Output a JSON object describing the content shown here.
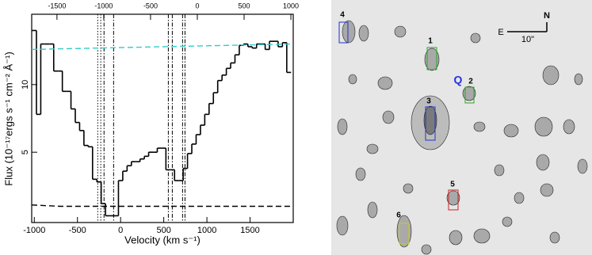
{
  "chart_data": {
    "type": "line",
    "x_label": "Velocity (km s⁻¹)",
    "y_label": "Flux  (10⁻¹⁷ergs s⁻¹ cm⁻² Å⁻¹)",
    "xlim": [
      -1030,
      2000
    ],
    "xticks": [
      -1000,
      -500,
      0,
      500,
      1000,
      1500
    ],
    "x2lim": [
      -1770,
      1025
    ],
    "x2ticks": [
      -1500,
      -1000,
      -500,
      0,
      500,
      1000
    ],
    "ylim": [
      -0.2,
      15.2
    ],
    "yticks": [
      5,
      10
    ],
    "series": [
      {
        "style": "steps",
        "color": "#000000",
        "x": [
          -1000,
          -950,
          -900,
          -850,
          -800,
          -750,
          -700,
          -650,
          -600,
          -550,
          -500,
          -450,
          -400,
          -350,
          -300,
          -250,
          -200,
          -150,
          -100,
          -50,
          0,
          50,
          100,
          150,
          200,
          250,
          300,
          350,
          400,
          450,
          500,
          550,
          600,
          650,
          700,
          750,
          800,
          850,
          900,
          950,
          1000,
          1050,
          1100,
          1150,
          1200,
          1250,
          1300,
          1350,
          1400,
          1450,
          1500,
          1550,
          1600,
          1650,
          1700,
          1750,
          1800,
          1850,
          1900,
          1950
        ],
        "values": [
          14.0,
          7.8,
          13.0,
          13.0,
          13.0,
          11.0,
          11.0,
          9.5,
          9.5,
          8.2,
          7.2,
          6.6,
          5.5,
          5.4,
          3.0,
          2.8,
          1.2,
          0.3,
          0.3,
          0.3,
          2.9,
          3.6,
          4.0,
          4.3,
          4.3,
          4.5,
          4.7,
          5.0,
          5.0,
          5.3,
          5.3,
          3.7,
          3.7,
          2.9,
          2.9,
          3.8,
          4.9,
          5.6,
          6.3,
          7.0,
          7.8,
          8.6,
          9.4,
          10.3,
          10.7,
          11.2,
          11.6,
          12.2,
          12.9,
          13.0,
          12.8,
          12.7,
          13.0,
          13.0,
          12.6,
          13.2,
          13.2,
          12.8,
          13.1,
          10.9
        ]
      },
      {
        "style": "dashed",
        "color": "#33cccc",
        "x": [
          -1030,
          2000
        ],
        "values": [
          12.6,
          13.0
        ]
      },
      {
        "style": "dashed",
        "color": "#000000",
        "x": [
          -1030,
          -700,
          2000
        ],
        "values": [
          1.1,
          1.0,
          1.0
        ]
      }
    ],
    "vlines": [
      {
        "x": -265,
        "style": "dotted"
      },
      {
        "x": -230,
        "style": "dotted"
      },
      {
        "x": -192,
        "style": "dashdot"
      },
      {
        "x": -81,
        "style": "dashdot"
      },
      {
        "x": 553,
        "style": "dashdot"
      },
      {
        "x": 599,
        "style": "dashdot"
      },
      {
        "x": 718,
        "style": "dashdot"
      },
      {
        "x": 746,
        "style": "dashdot"
      }
    ]
  },
  "image": {
    "labels": [
      "4",
      "1",
      "Q",
      "2",
      "3",
      "5",
      "6"
    ],
    "compass": {
      "north": "N",
      "east": "E",
      "scale": "10\""
    }
  }
}
